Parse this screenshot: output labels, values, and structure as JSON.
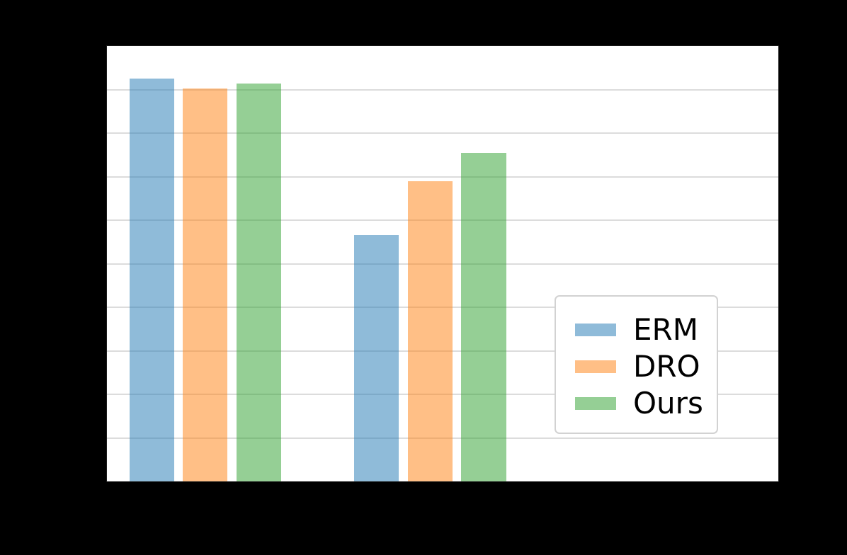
{
  "figure": {
    "background_color": "#000000",
    "plot_background_color": "#ffffff",
    "gridline_color": "#dcdcdc",
    "legend_background_color": "#ffffff",
    "legend_border_color": "#d2d2d2",
    "legend_text_color": "#000000"
  },
  "chart_data": {
    "type": "bar",
    "title": "",
    "x_tick_labels": [
      "",
      ""
    ],
    "series": [
      {
        "name": "ERM",
        "color": "#1f77b4",
        "values": [
          0.925,
          0.566
        ]
      },
      {
        "name": "DRO",
        "color": "#ff7f0e",
        "values": [
          0.902,
          0.69
        ]
      },
      {
        "name": "Ours",
        "color": "#2ca02c",
        "values": [
          0.914,
          0.754
        ]
      }
    ],
    "bar_alpha": 0.5,
    "ylim": [
      0,
      1
    ],
    "yticks": [
      0.1,
      0.2,
      0.3,
      0.4,
      0.5,
      0.6,
      0.7,
      0.8,
      0.9
    ],
    "grid": "horizontal",
    "legend_position": "center-right",
    "legend_entries": [
      "ERM",
      "DRO",
      "Ours"
    ]
  }
}
